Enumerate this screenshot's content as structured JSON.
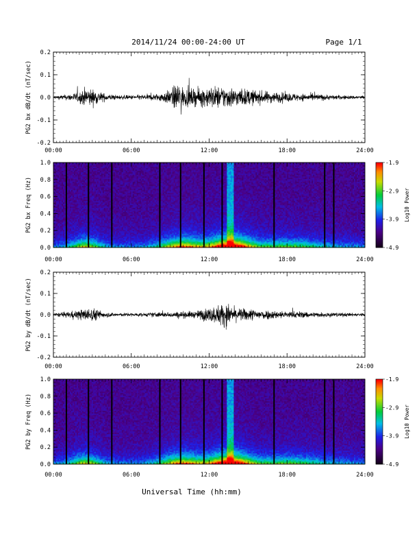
{
  "header": {
    "title": "2014/11/24  00:00-24:00 UT",
    "page": "Page 1/1"
  },
  "xaxis": {
    "label": "Universal Time (hh:mm)",
    "ticks": [
      "00:00",
      "06:00",
      "12:00",
      "18:00",
      "24:00"
    ],
    "range_hours": [
      0,
      24
    ]
  },
  "chart_data": [
    {
      "type": "line",
      "panel": "PG2 bx",
      "ylabel": "PG2 bx dB/dt (nT/sec)",
      "ylim": [
        -0.2,
        0.2
      ],
      "yticks": [
        -0.2,
        -0.1,
        0.0,
        0.1,
        0.2
      ],
      "ytick_labels": [
        "-0.2",
        "-0.1",
        "0.0",
        "0.1",
        "0.2"
      ],
      "grid": false,
      "series": [
        {
          "x_hours": [
            0,
            1,
            2,
            2.5,
            3,
            4,
            5,
            6,
            7,
            8,
            9,
            9.7,
            10,
            11,
            12,
            12.5,
            13,
            13.5,
            14,
            15,
            16,
            17,
            18,
            19,
            20,
            21,
            22,
            23,
            24
          ],
          "envelope_nT_s": [
            0.01,
            0.015,
            0.03,
            0.055,
            0.045,
            0.02,
            0.012,
            0.012,
            0.015,
            0.02,
            0.04,
            0.09,
            0.05,
            0.045,
            0.06,
            0.06,
            0.06,
            0.06,
            0.05,
            0.045,
            0.035,
            0.03,
            0.025,
            0.02,
            0.02,
            0.015,
            0.012,
            0.01,
            0.01
          ]
        }
      ]
    },
    {
      "type": "heatmap",
      "panel": "PG2 bx spectrogram",
      "ylabel": "PG2 bx Freq (Hz)",
      "ylim": [
        0.0,
        1.0
      ],
      "yticks": [
        0.0,
        0.2,
        0.4,
        0.6,
        0.8,
        1.0
      ],
      "ytick_labels": [
        "0.0",
        "0.2",
        "0.4",
        "0.6",
        "0.8",
        "1.0"
      ],
      "colorbar": {
        "label": "Log10 Power",
        "ticks": [
          "-1.9",
          "-2.9",
          "-3.9",
          "-4.9"
        ],
        "range": [
          -4.9,
          -1.9
        ]
      },
      "gap_lines_hours": [
        1.0,
        2.7,
        4.5,
        8.2,
        9.8,
        11.6,
        13.0,
        17.0,
        20.9,
        21.6
      ]
    },
    {
      "type": "line",
      "panel": "PG2 by",
      "ylabel": "PG2 by dB/dt (nT/sec)",
      "ylim": [
        -0.2,
        0.2
      ],
      "yticks": [
        -0.2,
        -0.1,
        0.0,
        0.1,
        0.2
      ],
      "ytick_labels": [
        "-0.2",
        "-0.1",
        "0.0",
        "0.1",
        "0.2"
      ],
      "grid": false,
      "series": [
        {
          "x_hours": [
            0,
            1,
            2,
            3,
            4,
            5,
            6,
            7,
            8,
            9,
            10,
            11,
            11.5,
            12,
            12.5,
            13,
            13.5,
            14,
            15,
            16,
            17,
            18,
            19,
            20,
            21,
            22,
            23,
            24
          ],
          "envelope_nT_s": [
            0.01,
            0.015,
            0.03,
            0.04,
            0.015,
            0.01,
            0.01,
            0.01,
            0.015,
            0.015,
            0.02,
            0.02,
            0.035,
            0.04,
            0.05,
            0.07,
            0.06,
            0.04,
            0.035,
            0.03,
            0.025,
            0.02,
            0.02,
            0.015,
            0.015,
            0.012,
            0.01,
            0.01
          ]
        }
      ]
    },
    {
      "type": "heatmap",
      "panel": "PG2 by spectrogram",
      "ylabel": "PG2 by Freq (Hz)",
      "ylim": [
        0.0,
        1.0
      ],
      "yticks": [
        0.0,
        0.2,
        0.4,
        0.6,
        0.8,
        1.0
      ],
      "ytick_labels": [
        "0.0",
        "0.2",
        "0.4",
        "0.6",
        "0.8",
        "1.0"
      ],
      "colorbar": {
        "label": "Log10 Power",
        "ticks": [
          "-1.9",
          "-2.9",
          "-3.9",
          "-4.9"
        ],
        "range": [
          -4.9,
          -1.9
        ]
      },
      "gap_lines_hours": [
        1.0,
        2.7,
        4.5,
        8.2,
        9.8,
        11.6,
        13.0,
        17.0,
        20.9,
        21.6
      ]
    }
  ]
}
